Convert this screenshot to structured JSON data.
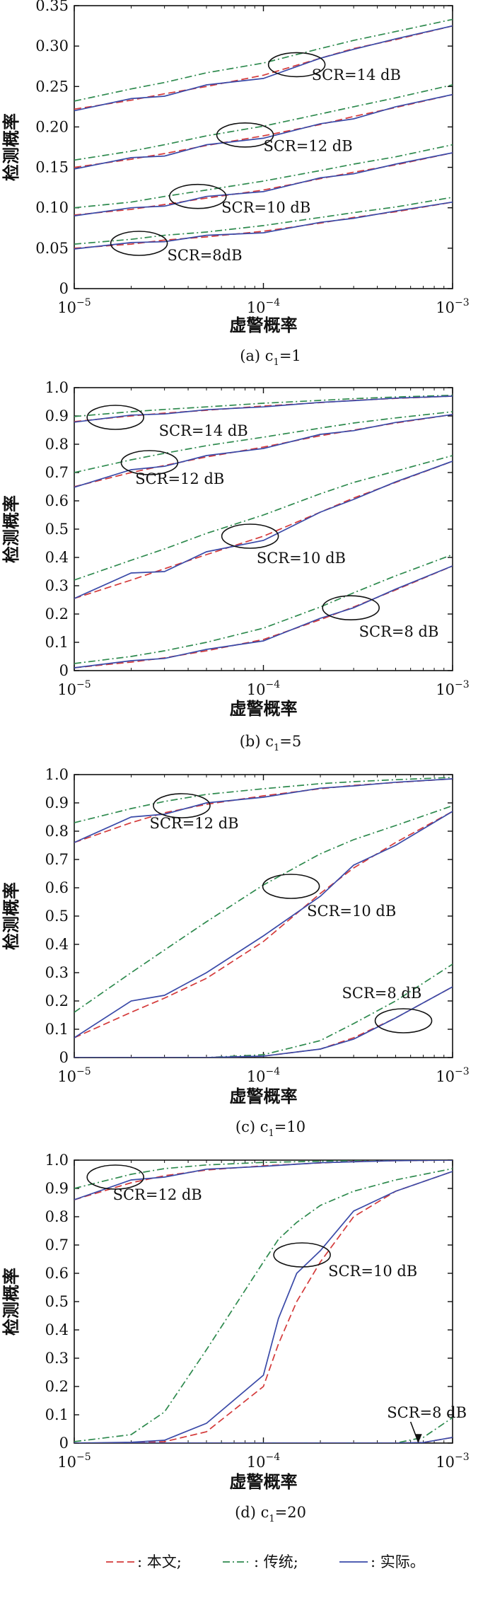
{
  "chart_data": [
    {
      "type": "line",
      "caption": "(a) c",
      "caption_sub": "1",
      "caption_tail": "=1",
      "xlabel": "虚警概率",
      "ylabel": "检测概率",
      "xscale": "log",
      "xlim": [
        1e-05,
        0.001
      ],
      "ylim": [
        0,
        0.35
      ],
      "yticks": [
        0,
        0.05,
        0.1,
        0.15,
        0.2,
        0.25,
        0.3,
        0.35
      ],
      "ytick_labels": [
        "0",
        "0.05",
        "0.10",
        "0.15",
        "0.20",
        "0.25",
        "0.30",
        "0.35"
      ],
      "xticks": [
        1e-05,
        0.0001,
        0.001
      ],
      "xtick_labels": [
        {
          "b": "10",
          "e": "−5"
        },
        {
          "b": "10",
          "e": "−4"
        },
        {
          "b": "10",
          "e": "−3"
        }
      ],
      "groups": [
        {
          "label": "SCR=14 dB",
          "ellipse": {
            "x": 0.00015,
            "y": 0.277
          },
          "label_at": {
            "x": 0.00018,
            "y": 0.258
          },
          "x": [
            1e-05,
            2e-05,
            3e-05,
            5e-05,
            0.0001,
            0.0002,
            0.0003,
            0.0005,
            0.001
          ],
          "bw": [
            0.222,
            0.233,
            0.241,
            0.25,
            0.264,
            0.285,
            0.297,
            0.308,
            0.325
          ],
          "ct": [
            0.232,
            0.247,
            0.255,
            0.267,
            0.279,
            0.297,
            0.307,
            0.318,
            0.333
          ],
          "sj": [
            0.22,
            0.235,
            0.238,
            0.252,
            0.26,
            0.285,
            0.296,
            0.309,
            0.325
          ]
        },
        {
          "label": "SCR=12 dB",
          "ellipse": {
            "x": 8e-05,
            "y": 0.19
          },
          "label_at": {
            "x": 0.0001,
            "y": 0.17
          },
          "x": [
            1e-05,
            2e-05,
            3e-05,
            5e-05,
            0.0001,
            0.0002,
            0.0003,
            0.0005,
            0.001
          ],
          "bw": [
            0.15,
            0.16,
            0.167,
            0.177,
            0.189,
            0.203,
            0.213,
            0.224,
            0.24
          ],
          "ct": [
            0.159,
            0.17,
            0.178,
            0.189,
            0.201,
            0.216,
            0.225,
            0.236,
            0.252
          ],
          "sj": [
            0.148,
            0.162,
            0.164,
            0.178,
            0.186,
            0.204,
            0.21,
            0.225,
            0.24
          ]
        },
        {
          "label": "SCR=10 dB",
          "ellipse": {
            "x": 4.5e-05,
            "y": 0.114
          },
          "label_at": {
            "x": 6e-05,
            "y": 0.094
          },
          "x": [
            1e-05,
            2e-05,
            3e-05,
            5e-05,
            0.0001,
            0.0002,
            0.0003,
            0.0005,
            0.001
          ],
          "bw": [
            0.091,
            0.098,
            0.104,
            0.112,
            0.122,
            0.136,
            0.144,
            0.153,
            0.168
          ],
          "ct": [
            0.1,
            0.107,
            0.114,
            0.122,
            0.133,
            0.146,
            0.154,
            0.163,
            0.178
          ],
          "sj": [
            0.09,
            0.1,
            0.102,
            0.114,
            0.12,
            0.137,
            0.142,
            0.154,
            0.168
          ]
        },
        {
          "label": "SCR=8dB",
          "ellipse": {
            "x": 2.2e-05,
            "y": 0.056
          },
          "label_at": {
            "x": 3.1e-05,
            "y": 0.035
          },
          "x": [
            1e-05,
            2e-05,
            3e-05,
            5e-05,
            0.0001,
            0.0002,
            0.0003,
            0.0005,
            0.001
          ],
          "bw": [
            0.05,
            0.055,
            0.06,
            0.064,
            0.071,
            0.081,
            0.088,
            0.095,
            0.107
          ],
          "ct": [
            0.055,
            0.061,
            0.066,
            0.07,
            0.078,
            0.088,
            0.094,
            0.101,
            0.113
          ],
          "sj": [
            0.049,
            0.057,
            0.058,
            0.066,
            0.069,
            0.082,
            0.087,
            0.096,
            0.107
          ]
        }
      ]
    },
    {
      "type": "line",
      "caption": "(b) c",
      "caption_sub": "1",
      "caption_tail": "=5",
      "xlabel": "虚警概率",
      "ylabel": "检测概率",
      "xscale": "log",
      "xlim": [
        1e-05,
        0.001
      ],
      "ylim": [
        0,
        1.0
      ],
      "yticks": [
        0,
        0.1,
        0.2,
        0.3,
        0.4,
        0.5,
        0.6,
        0.7,
        0.8,
        0.9,
        1.0
      ],
      "ytick_labels": [
        "0",
        "0.1",
        "0.2",
        "0.3",
        "0.4",
        "0.5",
        "0.6",
        "0.7",
        "0.8",
        "0.9",
        "1.0"
      ],
      "xticks": [
        1e-05,
        0.0001,
        0.001
      ],
      "xtick_labels": [
        {
          "b": "10",
          "e": "−5"
        },
        {
          "b": "10",
          "e": "−4"
        },
        {
          "b": "10",
          "e": "−3"
        }
      ],
      "groups": [
        {
          "label": "SCR=14 dB",
          "ellipse": {
            "x": 1.65e-05,
            "y": 0.895
          },
          "label_at": {
            "x": 2.8e-05,
            "y": 0.83
          },
          "x": [
            1e-05,
            2e-05,
            3e-05,
            5e-05,
            0.0001,
            0.0002,
            0.0003,
            0.0005,
            0.001
          ],
          "bw": [
            0.88,
            0.9,
            0.91,
            0.92,
            0.935,
            0.947,
            0.955,
            0.962,
            0.97
          ],
          "ct": [
            0.898,
            0.915,
            0.923,
            0.932,
            0.945,
            0.955,
            0.961,
            0.967,
            0.973
          ],
          "sj": [
            0.878,
            0.903,
            0.907,
            0.922,
            0.932,
            0.948,
            0.954,
            0.963,
            0.97
          ]
        },
        {
          "label": "SCR=12 dB",
          "ellipse": {
            "x": 2.5e-05,
            "y": 0.735
          },
          "label_at": {
            "x": 2.1e-05,
            "y": 0.66
          },
          "x": [
            1e-05,
            2e-05,
            3e-05,
            5e-05,
            0.0001,
            0.0002,
            0.0003,
            0.0005,
            0.001
          ],
          "bw": [
            0.65,
            0.7,
            0.725,
            0.755,
            0.79,
            0.83,
            0.85,
            0.875,
            0.905
          ],
          "ct": [
            0.7,
            0.745,
            0.768,
            0.795,
            0.825,
            0.857,
            0.875,
            0.893,
            0.915
          ],
          "sj": [
            0.648,
            0.71,
            0.722,
            0.76,
            0.785,
            0.835,
            0.848,
            0.877,
            0.905
          ]
        },
        {
          "label": "SCR=10 dB",
          "ellipse": {
            "x": 8.5e-05,
            "y": 0.475
          },
          "label_at": {
            "x": 9.2e-05,
            "y": 0.38
          },
          "x": [
            1e-05,
            2e-05,
            3e-05,
            5e-05,
            0.0001,
            0.0002,
            0.0003,
            0.0005,
            0.001
          ],
          "bw": [
            0.255,
            0.32,
            0.36,
            0.41,
            0.475,
            0.56,
            0.61,
            0.665,
            0.74
          ],
          "ct": [
            0.32,
            0.39,
            0.43,
            0.485,
            0.55,
            0.625,
            0.665,
            0.705,
            0.76
          ],
          "sj": [
            0.255,
            0.345,
            0.35,
            0.42,
            0.46,
            0.56,
            0.605,
            0.667,
            0.74
          ]
        },
        {
          "label": "SCR=8 dB",
          "ellipse": {
            "x": 0.00029,
            "y": 0.222
          },
          "label_at": {
            "x": 0.00032,
            "y": 0.12
          },
          "x": [
            1e-05,
            2e-05,
            3e-05,
            5e-05,
            0.0001,
            0.0002,
            0.0003,
            0.0005,
            0.001
          ],
          "bw": [
            0.01,
            0.03,
            0.045,
            0.07,
            0.11,
            0.18,
            0.225,
            0.285,
            0.37
          ],
          "ct": [
            0.025,
            0.05,
            0.07,
            0.1,
            0.15,
            0.225,
            0.275,
            0.335,
            0.41
          ],
          "sj": [
            0.01,
            0.035,
            0.043,
            0.075,
            0.105,
            0.185,
            0.222,
            0.288,
            0.37
          ]
        }
      ]
    },
    {
      "type": "line",
      "caption": "(c) c",
      "caption_sub": "1",
      "caption_tail": "=10",
      "xlabel": "虚警概率",
      "ylabel": "检测概率",
      "xscale": "log",
      "xlim": [
        1e-05,
        0.001
      ],
      "ylim": [
        0,
        1.0
      ],
      "yticks": [
        0,
        0.1,
        0.2,
        0.3,
        0.4,
        0.5,
        0.6,
        0.7,
        0.8,
        0.9,
        1.0
      ],
      "ytick_labels": [
        "0",
        "0.1",
        "0.2",
        "0.3",
        "0.4",
        "0.5",
        "0.6",
        "0.7",
        "0.8",
        "0.9",
        "1.0"
      ],
      "xticks": [
        1e-05,
        0.0001,
        0.001
      ],
      "xtick_labels": [
        {
          "b": "10",
          "e": "−5"
        },
        {
          "b": "10",
          "e": "−4"
        },
        {
          "b": "10",
          "e": "−3"
        }
      ],
      "groups": [
        {
          "label": "SCR=12 dB",
          "ellipse": {
            "x": 3.7e-05,
            "y": 0.89
          },
          "label_at": {
            "x": 2.5e-05,
            "y": 0.81
          },
          "x": [
            1e-05,
            2e-05,
            3e-05,
            5e-05,
            0.0001,
            0.0002,
            0.0003,
            0.0005,
            0.001
          ],
          "bw": [
            0.76,
            0.83,
            0.865,
            0.895,
            0.925,
            0.95,
            0.962,
            0.972,
            0.985
          ],
          "ct": [
            0.83,
            0.88,
            0.905,
            0.93,
            0.95,
            0.968,
            0.975,
            0.982,
            0.99
          ],
          "sj": [
            0.76,
            0.85,
            0.86,
            0.9,
            0.92,
            0.952,
            0.96,
            0.973,
            0.985
          ]
        },
        {
          "label": "SCR=10 dB",
          "ellipse": {
            "x": 0.00014,
            "y": 0.605
          },
          "label_at": {
            "x": 0.00017,
            "y": 0.5
          },
          "x": [
            1e-05,
            2e-05,
            3e-05,
            5e-05,
            0.0001,
            0.0002,
            0.0003,
            0.0005,
            0.001
          ],
          "bw": [
            0.07,
            0.16,
            0.21,
            0.28,
            0.41,
            0.58,
            0.67,
            0.76,
            0.87
          ],
          "ct": [
            0.16,
            0.3,
            0.38,
            0.48,
            0.61,
            0.72,
            0.77,
            0.82,
            0.89
          ],
          "sj": [
            0.07,
            0.2,
            0.22,
            0.3,
            0.43,
            0.57,
            0.68,
            0.75,
            0.87
          ]
        },
        {
          "label": "SCR=8 dB",
          "ellipse": {
            "x": 0.00055,
            "y": 0.13
          },
          "label_at": {
            "x": 0.00026,
            "y": 0.21
          },
          "x": [
            1e-05,
            2e-05,
            3e-05,
            5e-05,
            0.0001,
            0.0002,
            0.0003,
            0.0005,
            0.001
          ],
          "bw": [
            0,
            0,
            0,
            0,
            0.005,
            0.03,
            0.07,
            0.14,
            0.25
          ],
          "ct": [
            0,
            0,
            0,
            0,
            0.01,
            0.06,
            0.12,
            0.2,
            0.33
          ],
          "sj": [
            0,
            0,
            0,
            0,
            0.005,
            0.03,
            0.065,
            0.14,
            0.25
          ]
        }
      ]
    },
    {
      "type": "line",
      "caption": "(d) c",
      "caption_sub": "1",
      "caption_tail": "=20",
      "xlabel": "虚警概率",
      "ylabel": "检测概率",
      "xscale": "log",
      "xlim": [
        1e-05,
        0.001
      ],
      "ylim": [
        0,
        1.0
      ],
      "yticks": [
        0,
        0.1,
        0.2,
        0.3,
        0.4,
        0.5,
        0.6,
        0.7,
        0.8,
        0.9,
        1.0
      ],
      "ytick_labels": [
        "0",
        "0.1",
        "0.2",
        "0.3",
        "0.4",
        "0.5",
        "0.6",
        "0.7",
        "0.8",
        "0.9",
        "1.0"
      ],
      "xticks": [
        1e-05,
        0.0001,
        0.001
      ],
      "xtick_labels": [
        {
          "b": "10",
          "e": "−5"
        },
        {
          "b": "10",
          "e": "−4"
        },
        {
          "b": "10",
          "e": "−3"
        }
      ],
      "groups": [
        {
          "label": "SCR=12 dB",
          "ellipse": {
            "x": 1.65e-05,
            "y": 0.94
          },
          "label_at": {
            "x": 1.6e-05,
            "y": 0.86
          },
          "x": [
            1e-05,
            2e-05,
            3e-05,
            5e-05,
            0.0001,
            0.0002,
            0.0003,
            0.0005,
            0.001
          ],
          "bw": [
            0.86,
            0.92,
            0.945,
            0.965,
            0.98,
            0.99,
            0.995,
            0.998,
            1.0
          ],
          "ct": [
            0.9,
            0.95,
            0.97,
            0.983,
            0.992,
            0.996,
            0.998,
            0.999,
            1.0
          ],
          "sj": [
            0.86,
            0.93,
            0.94,
            0.968,
            0.978,
            0.991,
            0.994,
            0.998,
            1.0
          ]
        },
        {
          "label": "SCR=10 dB",
          "ellipse": {
            "x": 0.00016,
            "y": 0.665
          },
          "label_at": {
            "x": 0.00022,
            "y": 0.59
          },
          "x": [
            1e-05,
            2e-05,
            3e-05,
            5e-05,
            0.0001,
            0.00012,
            0.00015,
            0.0002,
            0.0003,
            0.0005,
            0.001
          ],
          "bw": [
            0,
            0.001,
            0.005,
            0.04,
            0.2,
            0.35,
            0.5,
            0.64,
            0.8,
            0.89,
            0.96
          ],
          "ct": [
            0.005,
            0.03,
            0.11,
            0.33,
            0.64,
            0.72,
            0.78,
            0.84,
            0.89,
            0.93,
            0.97
          ],
          "sj": [
            0,
            0.003,
            0.01,
            0.07,
            0.24,
            0.44,
            0.6,
            0.68,
            0.82,
            0.89,
            0.96
          ]
        },
        {
          "label": "SCR=8 dB",
          "ellipse": null,
          "label_at": {
            "x": 0.00045,
            "y": 0.09
          },
          "arrow": {
            "from": {
              "x": 0.0006,
              "y": 0.075
            },
            "to": {
              "x": 0.00066,
              "y": 0.002
            }
          },
          "x": [
            1e-05,
            0.0001,
            0.0005,
            0.0007,
            0.001
          ],
          "bw": [
            0,
            0,
            0,
            0.002,
            0.02
          ],
          "ct": [
            0,
            0,
            0,
            0.02,
            0.09
          ],
          "sj": [
            0,
            0,
            0,
            0.002,
            0.02
          ]
        }
      ]
    }
  ],
  "legend": {
    "items": [
      {
        "key": "bw",
        "label": ": 本文;",
        "style": "dashed",
        "color": "#d43a3a"
      },
      {
        "key": "ct",
        "label": ": 传统;",
        "style": "dashdot",
        "color": "#2e8a4e"
      },
      {
        "key": "sj",
        "label": ": 实际。",
        "style": "solid",
        "color": "#3a4aa8"
      }
    ]
  }
}
